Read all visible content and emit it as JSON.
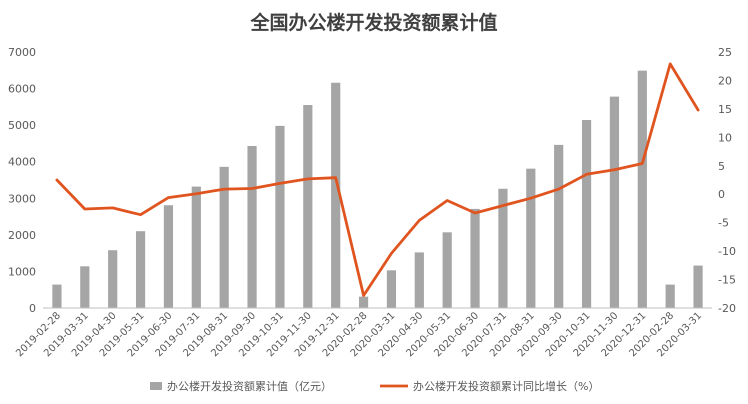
{
  "chart_data": {
    "type": "bar",
    "title": "全国办公楼开发投资额累计值",
    "categories": [
      "2019-02-28",
      "2019-03-31",
      "2019-04-30",
      "2019-05-31",
      "2019-06-30",
      "2019-07-31",
      "2019-08-31",
      "2019-09-30",
      "2019-10-31",
      "2019-11-30",
      "2019-12-31",
      "2020-02-28",
      "2020-03-31",
      "2020-04-30",
      "2020-05-31",
      "2020-06-30",
      "2020-07-31",
      "2020-08-31",
      "2020-09-30",
      "2020-10-31",
      "2020-11-30",
      "2020-12-31",
      "2020-02-28",
      "2020-03-31"
    ],
    "series": [
      {
        "name": "办公楼开发投资额累计值（亿元）",
        "type": "bar",
        "axis": "left",
        "color": "#a5a5a5",
        "values": [
          640,
          1140,
          1580,
          2100,
          2810,
          3320,
          3860,
          4430,
          4980,
          5550,
          6160,
          310,
          1030,
          1520,
          2070,
          2710,
          3260,
          3810,
          4460,
          5140,
          5780,
          6490,
          640,
          1160
        ]
      },
      {
        "name": "办公楼开发投资额累计同比增长（%）",
        "type": "line",
        "axis": "right",
        "color": "#e0541f",
        "values": [
          2.5,
          -2.6,
          -2.4,
          -3.6,
          -0.6,
          0.1,
          0.9,
          1.0,
          1.9,
          2.7,
          2.9,
          -17.8,
          -10.4,
          -4.6,
          -1.1,
          -3.3,
          -2.0,
          -0.7,
          0.9,
          3.5,
          4.3,
          5.4,
          22.9,
          14.8
        ]
      }
    ],
    "y_left": {
      "min": 0,
      "max": 7000,
      "ticks": [
        0,
        1000,
        2000,
        3000,
        4000,
        5000,
        6000,
        7000
      ]
    },
    "y_right": {
      "min": -20,
      "max": 25,
      "ticks": [
        -20,
        -15,
        -10,
        -5,
        0,
        5,
        10,
        15,
        20,
        25
      ]
    },
    "grid": false,
    "legend": "bottom"
  }
}
